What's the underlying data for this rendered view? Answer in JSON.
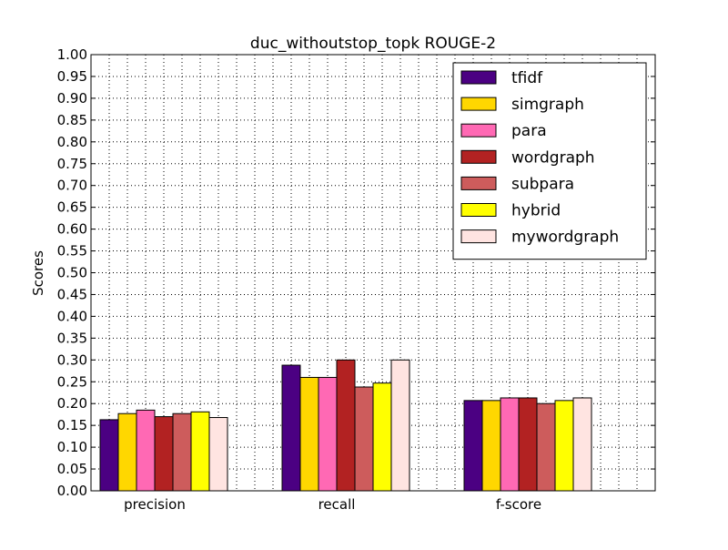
{
  "chart_data": {
    "type": "bar",
    "title": "duc_withoutstop_topk ROUGE-2",
    "xlabel": "",
    "ylabel": "Scores",
    "ylim": [
      0.0,
      1.0
    ],
    "yticks": [
      "0.00",
      "0.05",
      "0.10",
      "0.15",
      "0.20",
      "0.25",
      "0.30",
      "0.35",
      "0.40",
      "0.45",
      "0.50",
      "0.55",
      "0.60",
      "0.65",
      "0.70",
      "0.75",
      "0.80",
      "0.85",
      "0.90",
      "0.95",
      "1.00"
    ],
    "categories": [
      "precision",
      "recall",
      "f-score"
    ],
    "grid": true,
    "legend_position": "top-right",
    "series": [
      {
        "name": "tfidf",
        "color": "#4B0082",
        "values": [
          0.163,
          0.288,
          0.207
        ]
      },
      {
        "name": "simgraph",
        "color": "#FFD700",
        "values": [
          0.177,
          0.26,
          0.207
        ]
      },
      {
        "name": "para",
        "color": "#FF69B4",
        "values": [
          0.185,
          0.26,
          0.213
        ]
      },
      {
        "name": "wordgraph",
        "color": "#B22222",
        "values": [
          0.17,
          0.3,
          0.213
        ]
      },
      {
        "name": "subpara",
        "color": "#CD5C5C",
        "values": [
          0.177,
          0.238,
          0.2
        ]
      },
      {
        "name": "hybrid",
        "color": "#FFFF00",
        "values": [
          0.181,
          0.247,
          0.207
        ]
      },
      {
        "name": "mywordgraph",
        "color": "#FFE4E1",
        "values": [
          0.168,
          0.3,
          0.213
        ]
      }
    ]
  }
}
